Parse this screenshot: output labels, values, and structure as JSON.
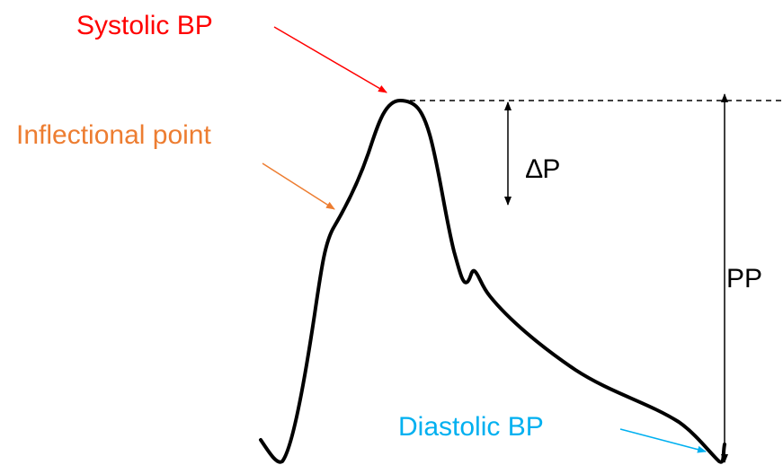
{
  "labels": [
    {
      "text": "Systolic BP"
    },
    {
      "text": "Inflectional point"
    },
    {
      "text": "∆P"
    },
    {
      "text": "PP"
    },
    {
      "text": "Diastolic BP"
    }
  ]
}
